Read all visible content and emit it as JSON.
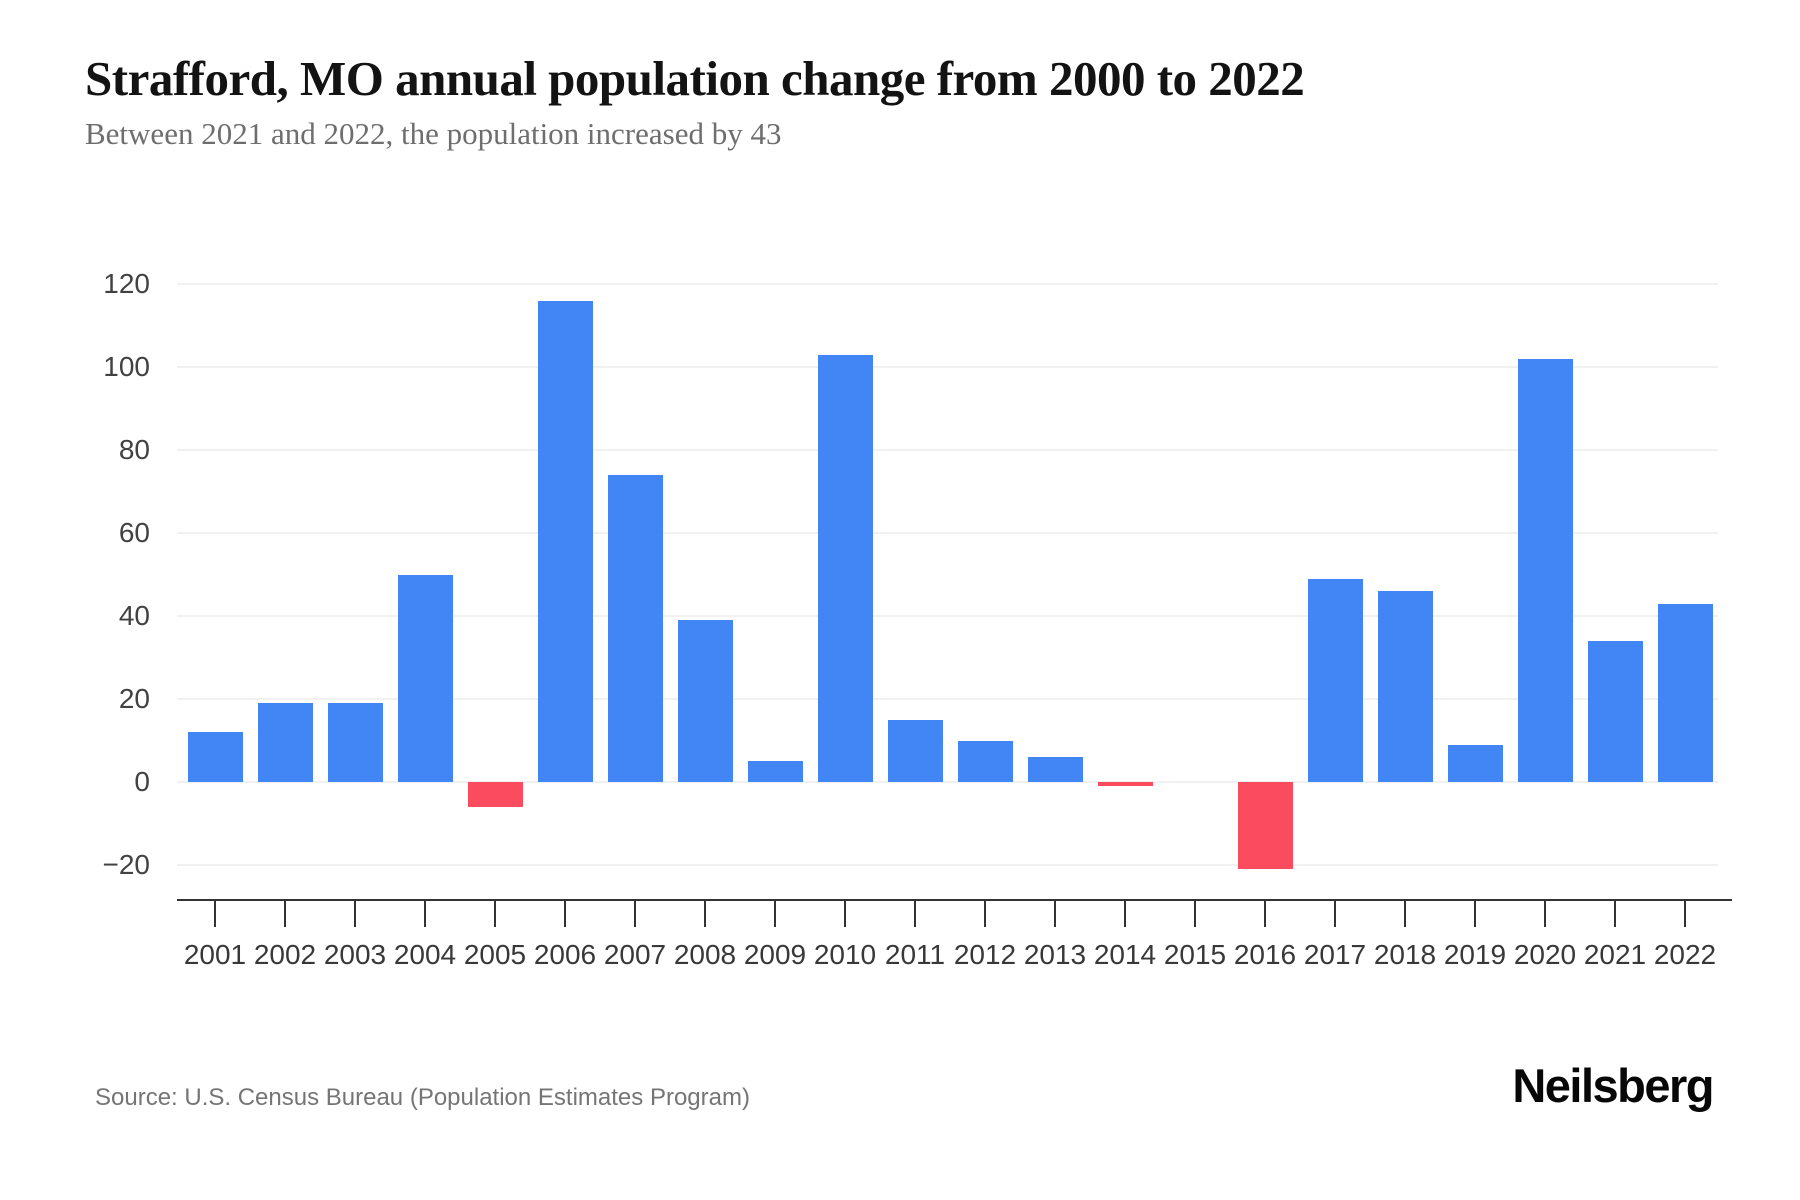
{
  "header": {
    "title": "Strafford, MO annual population change from 2000 to 2022",
    "subtitle": "Between 2021 and 2022, the population increased by 43"
  },
  "chart_data": {
    "type": "bar",
    "title": "Strafford, MO annual population change from 2000 to 2022",
    "subtitle": "Between 2021 and 2022, the population increased by 43",
    "categories": [
      "2001",
      "2002",
      "2003",
      "2004",
      "2005",
      "2006",
      "2007",
      "2008",
      "2009",
      "2010",
      "2011",
      "2012",
      "2013",
      "2014",
      "2015",
      "2016",
      "2017",
      "2018",
      "2019",
      "2020",
      "2021",
      "2022"
    ],
    "values": [
      12,
      19,
      19,
      50,
      -6,
      116,
      74,
      39,
      5,
      103,
      15,
      10,
      6,
      -1,
      0,
      -21,
      49,
      46,
      9,
      102,
      34,
      43
    ],
    "xlabel": "",
    "ylabel": "",
    "yticks": [
      120,
      100,
      80,
      60,
      40,
      20,
      0,
      -20
    ],
    "ylim": [
      -28,
      125
    ],
    "grid": true,
    "legend": "none",
    "positive_color": "#4285F4",
    "negative_color": "#FA4B5F",
    "gridline_color": "#f1f1f1",
    "axis_color": "#333333"
  },
  "footer": {
    "source": "Source: U.S. Census Bureau (Population Estimates Program)",
    "brand": "Neilsberg"
  }
}
